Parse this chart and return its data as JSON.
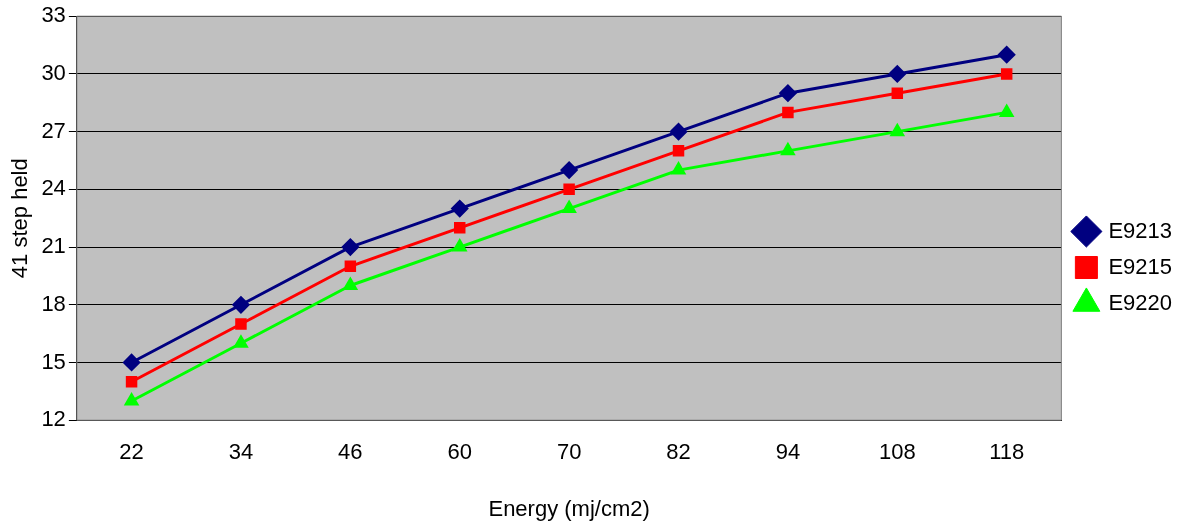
{
  "chart_data": {
    "type": "line",
    "xlabel": "Energy (mj/cm2)",
    "ylabel": "41 step held",
    "categories": [
      "22",
      "34",
      "46",
      "60",
      "70",
      "82",
      "94",
      "108",
      "118"
    ],
    "ylim": [
      12,
      33
    ],
    "yticks": [
      12,
      15,
      18,
      21,
      24,
      27,
      30,
      33
    ],
    "grid": "y",
    "legend": "right",
    "line_style": "solid",
    "series": [
      {
        "name": "E9213",
        "color": "#000080",
        "marker": "diamond",
        "values": [
          15,
          18,
          21,
          23,
          25,
          27,
          29,
          30,
          31
        ]
      },
      {
        "name": "E9215",
        "color": "#ff0000",
        "marker": "square",
        "values": [
          14,
          17,
          20,
          22,
          24,
          26,
          28,
          29,
          30
        ]
      },
      {
        "name": "E9220",
        "color": "#00ff00",
        "marker": "triangle",
        "values": [
          13,
          16,
          19,
          21,
          23,
          25,
          26,
          27,
          28
        ]
      }
    ]
  }
}
